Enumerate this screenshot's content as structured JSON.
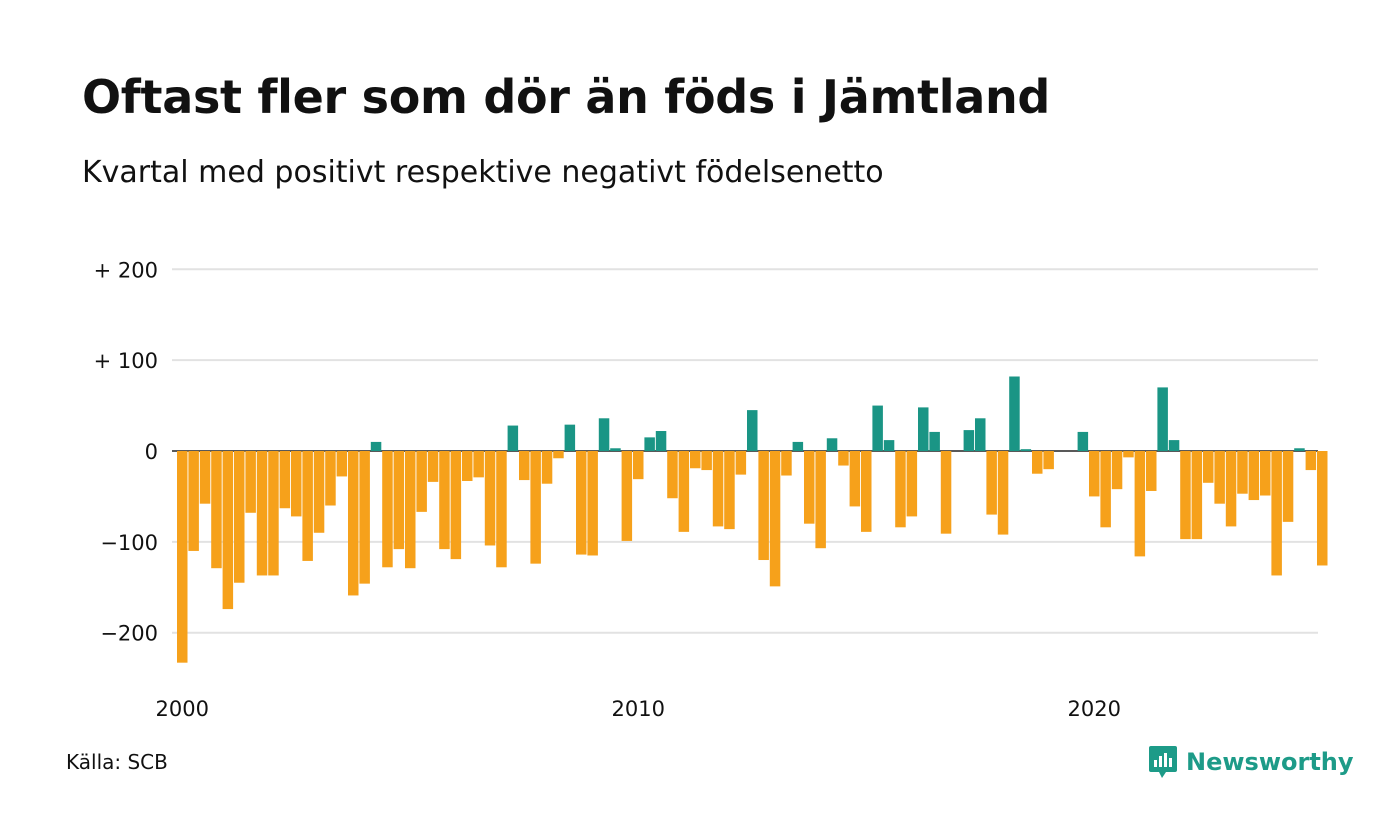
{
  "chart_data": {
    "type": "bar",
    "title": "Oftast fler som dör än föds i Jämtland",
    "subtitle": "Kvartal med positivt respektive negativt födelsenetto",
    "xlabel": "",
    "ylabel": "",
    "ylim": [
      -235,
      200
    ],
    "yticks": [
      200,
      100,
      0,
      -100,
      -200
    ],
    "ytick_labels": [
      "+ 200",
      "+ 100",
      "0",
      "−100",
      "−200"
    ],
    "xticks": [
      2000,
      2010,
      2020
    ],
    "xtick_labels": [
      "2000",
      "2010",
      "2020"
    ],
    "grid": true,
    "colors": {
      "positive": "#1a9585",
      "negative": "#f6a11b",
      "grid": "#e2e2e2",
      "zero_line": "#222222"
    },
    "series": [
      {
        "start_year": 2000,
        "periods_per_year": 4,
        "values": [
          -233,
          -110,
          -58,
          -129,
          -174,
          -145,
          -68,
          -137,
          -137,
          -63,
          -72,
          -121,
          -90,
          -60,
          -28,
          -159,
          -146,
          10,
          -128,
          -108,
          -129,
          -67,
          -34,
          -108,
          -119,
          -33,
          -29,
          -104,
          -128,
          28,
          -32,
          -124,
          -36,
          -8,
          29,
          -114,
          -115,
          36,
          3,
          -99,
          -31,
          15,
          22,
          -52,
          -89,
          -19,
          -21,
          -83,
          -86,
          -26,
          45,
          -120,
          -149,
          -27,
          10,
          -80,
          -107,
          14,
          -16,
          -61,
          -89,
          50,
          12,
          -84,
          -72,
          48,
          21,
          -91,
          0,
          23,
          36,
          -70,
          -92,
          82,
          2,
          -25,
          -20,
          0,
          0,
          21,
          -50,
          -84,
          -42,
          -7,
          -116,
          -44,
          70,
          12,
          -97,
          -97,
          -35,
          -58,
          -83,
          -47,
          -54,
          -49,
          -137,
          -78,
          3,
          -21,
          -126
        ]
      }
    ]
  },
  "footer": {
    "source": "Källa: SCB",
    "brand": "Newsworthy"
  }
}
